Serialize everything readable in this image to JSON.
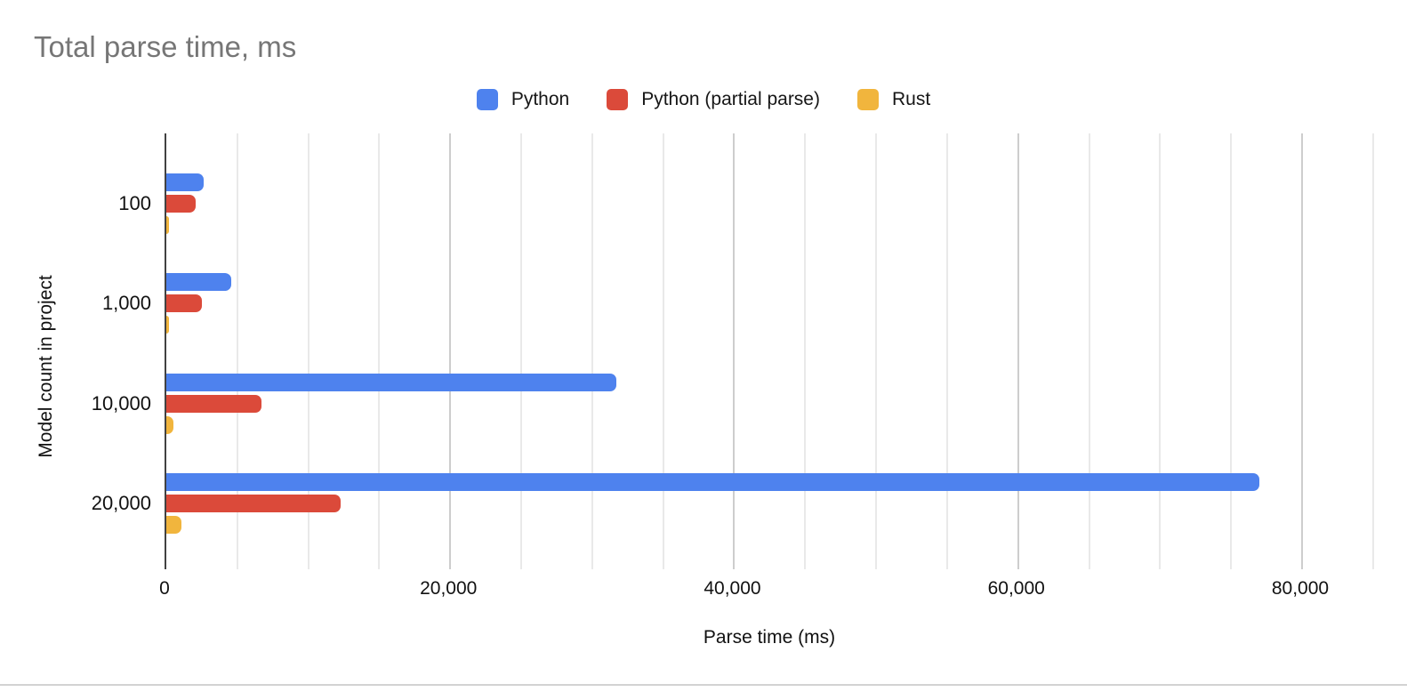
{
  "chart_data": {
    "type": "bar",
    "orientation": "horizontal",
    "title": "Total parse time, ms",
    "xlabel": "Parse time (ms)",
    "ylabel": "Model count in project",
    "categories": [
      "100",
      "1,000",
      "10,000",
      "20,000"
    ],
    "series": [
      {
        "name": "Python",
        "color": "#4e82ee",
        "values": [
          2600,
          4600,
          31700,
          77000
        ]
      },
      {
        "name": "Python (partial parse)",
        "color": "#db4a3a",
        "values": [
          2050,
          2500,
          6700,
          12250
        ]
      },
      {
        "name": "Rust",
        "color": "#f1b53d",
        "values": [
          120,
          150,
          500,
          1050
        ]
      }
    ],
    "x_axis": {
      "min": 0,
      "max": 85200,
      "tick_interval": 20000,
      "minor_gridline_interval": 5000,
      "tick_labels": [
        "0",
        "20,000",
        "40,000",
        "60,000",
        "80,000"
      ]
    },
    "legend_position": "top",
    "grid": true,
    "title_color": "#767676"
  }
}
